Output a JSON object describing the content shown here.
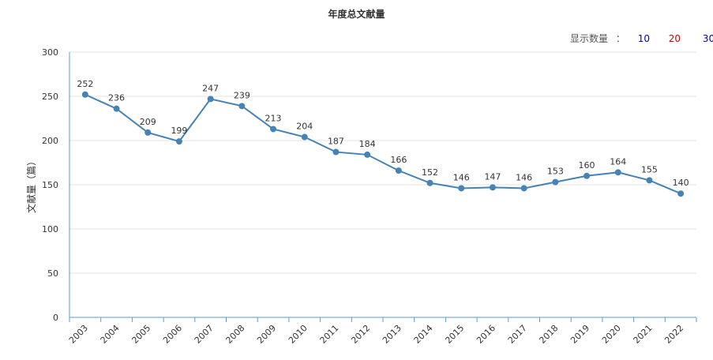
{
  "page": {
    "title": "年度总文献量"
  },
  "display_count": {
    "label": "显示数量",
    "separator": "：",
    "options": [
      {
        "label": "10",
        "color": "#0000cc"
      },
      {
        "label": "20",
        "color": "#cc0000"
      },
      {
        "label": "30",
        "color": "#0000cc"
      }
    ]
  },
  "chart_data": {
    "type": "line",
    "title": "年度总文献量",
    "xlabel": "",
    "ylabel": "文献量（篇）",
    "categories": [
      "2003",
      "2004",
      "2005",
      "2006",
      "2007",
      "2008",
      "2009",
      "2010",
      "2011",
      "2012",
      "2013",
      "2014",
      "2015",
      "2016",
      "2017",
      "2018",
      "2019",
      "2020",
      "2021",
      "2022"
    ],
    "series": [
      {
        "values": [
          252,
          236,
          209,
          199,
          247,
          239,
          213,
          204,
          187,
          184,
          166,
          152,
          146,
          147,
          146,
          153,
          160,
          164,
          155,
          140
        ]
      }
    ],
    "ylim": [
      0,
      300
    ],
    "yticks": [
      0,
      50,
      100,
      150,
      200,
      250,
      300
    ],
    "grid": true,
    "line_color": "#4682b4",
    "axis_color": "#5b9bd5"
  }
}
